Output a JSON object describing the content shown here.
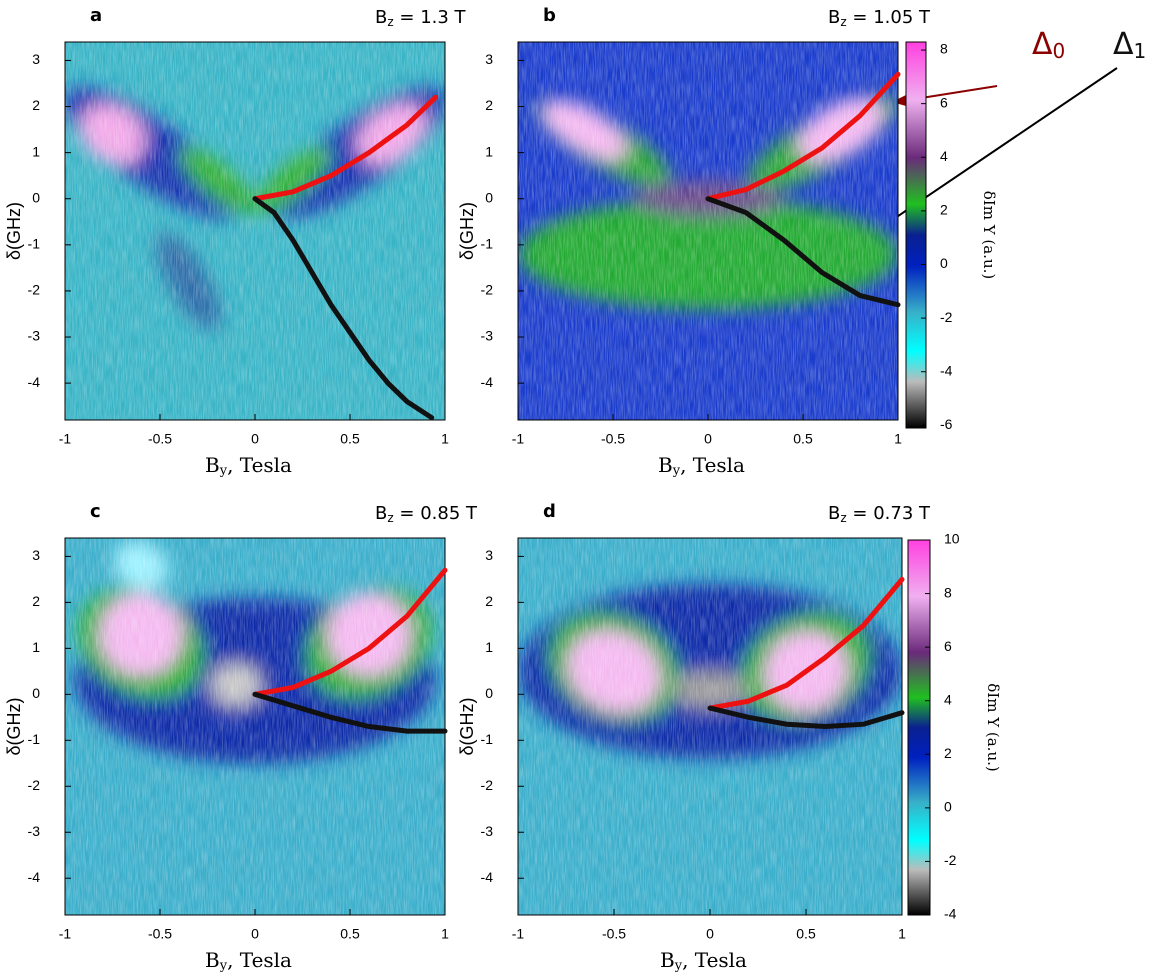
{
  "chart_data": [
    {
      "type": "line",
      "panel_label": "a",
      "title": {
        "text": "B",
        "sub": "z",
        "rest": " = 1.3 T"
      },
      "xlabel": {
        "text": "B",
        "sub": "y",
        "rest": ", Tesla"
      },
      "ylabel": "δ(GHz)",
      "xlim": [
        -1,
        1
      ],
      "ylim": [
        -4.8,
        3.4
      ],
      "xticks": [
        -1,
        -0.5,
        0,
        0.5,
        1
      ],
      "yticks": [
        -4,
        -3,
        -2,
        -1,
        0,
        1,
        2,
        3
      ],
      "series": [
        {
          "color": "#ee1111",
          "x": [
            0,
            0.2,
            0.4,
            0.6,
            0.8,
            0.95
          ],
          "values": [
            0,
            0.15,
            0.5,
            1.0,
            1.6,
            2.2
          ]
        },
        {
          "color": "#111111",
          "x": [
            0,
            0.1,
            0.2,
            0.3,
            0.4,
            0.5,
            0.6,
            0.7,
            0.8,
            0.93
          ],
          "values": [
            0,
            -0.3,
            -0.9,
            -1.6,
            -2.3,
            -2.9,
            -3.5,
            -4.0,
            -4.4,
            -4.75
          ]
        }
      ]
    },
    {
      "type": "line",
      "panel_label": "b",
      "title": {
        "text": "B",
        "sub": "z",
        "rest": " = 1.05 T"
      },
      "xlabel": {
        "text": "B",
        "sub": "y",
        "rest": ", Tesla"
      },
      "ylabel": "δ(GHz)",
      "xlim": [
        -1,
        1
      ],
      "ylim": [
        -4.8,
        3.4
      ],
      "xticks": [
        -1,
        -0.5,
        0,
        0.5,
        1
      ],
      "yticks": [
        -4,
        -3,
        -2,
        -1,
        0,
        1,
        2,
        3
      ],
      "series": [
        {
          "color": "#ee1111",
          "x": [
            0,
            0.2,
            0.4,
            0.6,
            0.8,
            1.0
          ],
          "values": [
            0,
            0.2,
            0.6,
            1.1,
            1.8,
            2.7
          ]
        },
        {
          "color": "#111111",
          "x": [
            0,
            0.2,
            0.4,
            0.6,
            0.8,
            1.0
          ],
          "values": [
            0,
            -0.3,
            -0.9,
            -1.6,
            -2.1,
            -2.3
          ]
        }
      ],
      "colorbar": {
        "lim": [
          -6.1,
          8.3
        ],
        "ticks": [
          -6,
          -4,
          -2,
          0,
          2,
          4,
          6,
          8
        ],
        "label": "δIm Y (a.u.)"
      },
      "annotations": [
        {
          "text": "Δ",
          "sub": "0",
          "color": "#8b0000"
        },
        {
          "text": "Δ",
          "sub": "1",
          "color": "#111111"
        }
      ]
    },
    {
      "type": "line",
      "panel_label": "c",
      "title": {
        "text": "B",
        "sub": "z",
        "rest": " = 0.85 T"
      },
      "xlabel": {
        "text": "B",
        "sub": "y",
        "rest": ", Tesla"
      },
      "ylabel": "δ(GHz)",
      "xlim": [
        -1,
        1
      ],
      "ylim": [
        -4.8,
        3.4
      ],
      "xticks": [
        -1,
        -0.5,
        0,
        0.5,
        1
      ],
      "yticks": [
        -4,
        -3,
        -2,
        -1,
        0,
        1,
        2,
        3
      ],
      "series": [
        {
          "color": "#ee1111",
          "x": [
            0,
            0.2,
            0.4,
            0.6,
            0.8,
            1.0
          ],
          "values": [
            0,
            0.15,
            0.5,
            1.0,
            1.7,
            2.7
          ]
        },
        {
          "color": "#111111",
          "x": [
            0,
            0.2,
            0.4,
            0.6,
            0.8,
            1.0
          ],
          "values": [
            0,
            -0.25,
            -0.5,
            -0.7,
            -0.8,
            -0.8
          ]
        }
      ]
    },
    {
      "type": "line",
      "panel_label": "d",
      "title": {
        "text": "B",
        "sub": "z",
        "rest": " = 0.73 T"
      },
      "xlabel": {
        "text": "B",
        "sub": "y",
        "rest": ", Tesla"
      },
      "ylabel": "δ(GHz)",
      "xlim": [
        -1,
        1
      ],
      "ylim": [
        -4.8,
        3.4
      ],
      "xticks": [
        -1,
        -0.5,
        0,
        0.5,
        1
      ],
      "yticks": [
        -4,
        -3,
        -2,
        -1,
        0,
        1,
        2,
        3
      ],
      "series": [
        {
          "color": "#ee1111",
          "x": [
            0,
            0.2,
            0.4,
            0.6,
            0.8,
            1.0
          ],
          "values": [
            -0.3,
            -0.15,
            0.2,
            0.8,
            1.5,
            2.5
          ]
        },
        {
          "color": "#111111",
          "x": [
            0,
            0.2,
            0.4,
            0.6,
            0.8,
            1.0
          ],
          "values": [
            -0.3,
            -0.5,
            -0.65,
            -0.7,
            -0.65,
            -0.4
          ]
        }
      ],
      "colorbar": {
        "lim": [
          -4,
          10
        ],
        "ticks": [
          -4,
          -2,
          0,
          2,
          4,
          6,
          8,
          10
        ],
        "label": "δIm Y (a.u.)"
      }
    }
  ]
}
